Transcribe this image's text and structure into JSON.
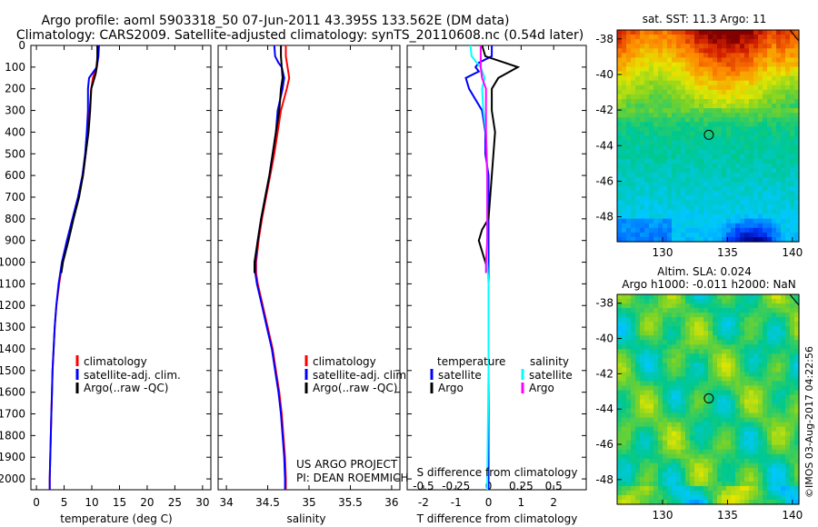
{
  "header": {
    "title_line1": "Argo profile: aoml 5903318_50 07-Jun-2011 43.395S 133.562E (DM data)",
    "title_line2": "Climatology: CARS2009. Satellite-adjusted climatology: synTS_20110608.nc (0.54d later)"
  },
  "chart_data": [
    {
      "type": "line",
      "name": "temperature-profile",
      "xlabel": "temperature (deg C)",
      "ylabel": "",
      "xlim": [
        -1,
        31.5
      ],
      "ylim": [
        2050,
        0
      ],
      "x_ticks": [
        0,
        5,
        10,
        15,
        20,
        25,
        30
      ],
      "y_ticks": [
        0,
        100,
        200,
        300,
        400,
        500,
        600,
        700,
        800,
        900,
        1000,
        1100,
        1200,
        1300,
        1400,
        1500,
        1600,
        1700,
        1800,
        1900,
        2000
      ],
      "legend": [
        "climatology",
        "satellite-adj. clim.",
        "Argo(..raw -QC)"
      ],
      "series": [
        {
          "name": "climatology",
          "color": "#ff0000",
          "y": [
            0,
            50,
            100,
            150,
            200,
            300,
            400,
            500,
            600,
            700,
            800,
            900,
            1000,
            1100,
            1200,
            1300,
            1400,
            1500,
            1600,
            1700,
            1800,
            1900,
            2000,
            2050
          ],
          "x": [
            11.2,
            11.1,
            10.8,
            10.2,
            9.9,
            9.6,
            9.3,
            8.9,
            8.4,
            7.6,
            6.6,
            5.6,
            4.7,
            4.1,
            3.6,
            3.3,
            3.1,
            2.9,
            2.8,
            2.7,
            2.6,
            2.5,
            2.4,
            2.4
          ]
        },
        {
          "name": "satellite-adj. clim.",
          "color": "#0000ff",
          "y": [
            0,
            50,
            100,
            150,
            200,
            300,
            400,
            500,
            600,
            700,
            800,
            900,
            1000,
            1100,
            1200,
            1300,
            1400,
            1500,
            1600,
            1700,
            1800,
            1900,
            2000,
            2050
          ],
          "x": [
            11.3,
            11.2,
            10.9,
            9.5,
            9.3,
            9.3,
            9.1,
            8.8,
            8.3,
            7.5,
            6.5,
            5.5,
            4.6,
            4.0,
            3.6,
            3.3,
            3.1,
            2.9,
            2.8,
            2.7,
            2.6,
            2.5,
            2.4,
            2.4
          ]
        },
        {
          "name": "Argo(..raw -QC)",
          "color": "#000000",
          "y": [
            0,
            50,
            100,
            130,
            200,
            300,
            400,
            500,
            600,
            700,
            800,
            900,
            1000,
            1050
          ],
          "x": [
            11.0,
            11.0,
            10.9,
            10.7,
            9.9,
            9.7,
            9.4,
            8.9,
            8.4,
            7.7,
            6.7,
            5.8,
            4.8,
            4.5
          ]
        }
      ]
    },
    {
      "type": "line",
      "name": "salinity-profile",
      "xlabel": "salinity",
      "xlim": [
        33.9,
        36.1
      ],
      "ylim": [
        2050,
        0
      ],
      "x_ticks": [
        34,
        34.5,
        35,
        35.5,
        36
      ],
      "legend": [
        "climatology",
        "satellite-adj. clim.",
        "Argo(..raw -QC)"
      ],
      "series": [
        {
          "name": "climatology",
          "color": "#ff0000",
          "y": [
            0,
            50,
            100,
            150,
            200,
            300,
            400,
            500,
            600,
            700,
            800,
            900,
            1000,
            1050,
            1100,
            1200,
            1300,
            1400,
            1500,
            1600,
            1700,
            1800,
            1900,
            2000,
            2050
          ],
          "x": [
            34.72,
            34.72,
            34.74,
            34.76,
            34.73,
            34.66,
            34.62,
            34.58,
            34.53,
            34.48,
            34.43,
            34.39,
            34.36,
            34.36,
            34.38,
            34.44,
            34.5,
            34.56,
            34.6,
            34.64,
            34.67,
            34.69,
            34.71,
            34.72,
            34.72
          ]
        },
        {
          "name": "satellite-adj. clim.",
          "color": "#0000ff",
          "y": [
            0,
            50,
            80,
            100,
            150,
            200,
            300,
            400,
            500,
            600,
            700,
            800,
            900,
            1000,
            1050,
            1100,
            1200,
            1300,
            1400,
            1500,
            1600,
            1700,
            1800,
            1900,
            2000,
            2050
          ],
          "x": [
            34.58,
            34.59,
            34.63,
            34.67,
            34.7,
            34.68,
            34.62,
            34.6,
            34.56,
            34.52,
            34.47,
            34.42,
            34.38,
            34.35,
            34.35,
            34.37,
            34.43,
            34.49,
            34.55,
            34.59,
            34.63,
            34.66,
            34.68,
            34.7,
            34.71,
            34.71
          ]
        },
        {
          "name": "Argo(..raw -QC)",
          "color": "#000000",
          "y": [
            0,
            50,
            100,
            150,
            200,
            250,
            300,
            400,
            500,
            600,
            700,
            800,
            900,
            1000,
            1050
          ],
          "x": [
            34.66,
            34.66,
            34.67,
            34.68,
            34.66,
            34.65,
            34.64,
            34.6,
            34.56,
            34.52,
            34.47,
            34.42,
            34.38,
            34.34,
            34.34
          ]
        }
      ],
      "annotations": [
        "US ARGO PROJECT",
        "PI: DEAN ROEMMICH"
      ]
    },
    {
      "type": "line",
      "name": "difference-profile",
      "xlabel": "T difference from climatology",
      "x2label": "S difference from climatology",
      "xlim": [
        -2.5,
        3
      ],
      "ylim": [
        2050,
        0
      ],
      "x_ticks": [
        -2,
        -1,
        0,
        1,
        2
      ],
      "x2_ticks": [
        -0.5,
        -0.25,
        0,
        0.25,
        0.5
      ],
      "legend_groups": [
        {
          "title": "temperature",
          "items": [
            "satellite",
            "Argo"
          ]
        },
        {
          "title": "salinity",
          "items": [
            "satellite",
            "Argo"
          ]
        }
      ],
      "series": [
        {
          "name": "temperature satellite",
          "color": "#0000ff",
          "y": [
            0,
            50,
            80,
            100,
            120,
            150,
            200,
            300,
            400,
            500,
            600,
            700,
            800,
            900,
            1000,
            1100,
            1500,
            2000,
            2050
          ],
          "x": [
            0.1,
            0.1,
            -0.3,
            -0.4,
            -0.3,
            -0.7,
            -0.6,
            -0.2,
            -0.1,
            -0.1,
            0.0,
            0.0,
            0.0,
            0.0,
            0.0,
            0.0,
            0.0,
            0.0,
            0.0
          ]
        },
        {
          "name": "temperature Argo",
          "color": "#000000",
          "y": [
            0,
            50,
            80,
            100,
            150,
            200,
            300,
            400,
            600,
            800,
            850,
            900,
            1000,
            1050
          ],
          "x": [
            -0.2,
            -0.1,
            0.5,
            0.9,
            0.3,
            0.1,
            0.1,
            0.2,
            0.1,
            0.0,
            -0.2,
            -0.3,
            -0.1,
            0.0
          ]
        },
        {
          "name": "salinity satellite",
          "color": "#00ffff",
          "y": [
            0,
            50,
            80,
            100,
            150,
            200,
            300,
            400,
            600,
            800,
            1000,
            1100,
            1500,
            2000,
            2050
          ],
          "x": [
            -0.14,
            -0.13,
            -0.09,
            -0.06,
            -0.03,
            -0.05,
            -0.04,
            -0.02,
            -0.01,
            -0.01,
            -0.01,
            0.0,
            0.0,
            -0.01,
            -0.01
          ]
        },
        {
          "name": "salinity Argo",
          "color": "#ff00ff",
          "y": [
            0,
            50,
            100,
            150,
            200,
            300,
            400,
            600,
            800,
            900,
            1000,
            1050
          ],
          "x": [
            -0.06,
            -0.06,
            -0.06,
            -0.05,
            -0.02,
            -0.02,
            -0.02,
            -0.01,
            -0.01,
            -0.01,
            -0.02,
            -0.02
          ]
        }
      ]
    },
    {
      "type": "heatmap",
      "name": "sst-map",
      "title": "sat. SST: 11.3  Argo: 11",
      "x_ticks": [
        130,
        135,
        140
      ],
      "y_ticks": [
        -38,
        -40,
        -42,
        -44,
        -46,
        -48
      ],
      "xlim": [
        126.5,
        140.5
      ],
      "ylim": [
        -49.4,
        -37.5
      ],
      "marker": {
        "lon": 133.562,
        "lat": -43.395
      }
    },
    {
      "type": "heatmap",
      "name": "sla-map",
      "title_line1": "Altim. SLA: 0.024",
      "title_line2": "Argo h1000: -0.011 h2000: NaN",
      "x_ticks": [
        130,
        135,
        140
      ],
      "y_ticks": [
        -38,
        -40,
        -42,
        -44,
        -46,
        -48
      ],
      "xlim": [
        126.5,
        140.5
      ],
      "ylim": [
        -49.4,
        -37.5
      ],
      "marker": {
        "lon": 133.562,
        "lat": -43.395
      }
    }
  ],
  "footer": {
    "credit": "©IMOS 03-Aug-2017 04:22:56"
  }
}
